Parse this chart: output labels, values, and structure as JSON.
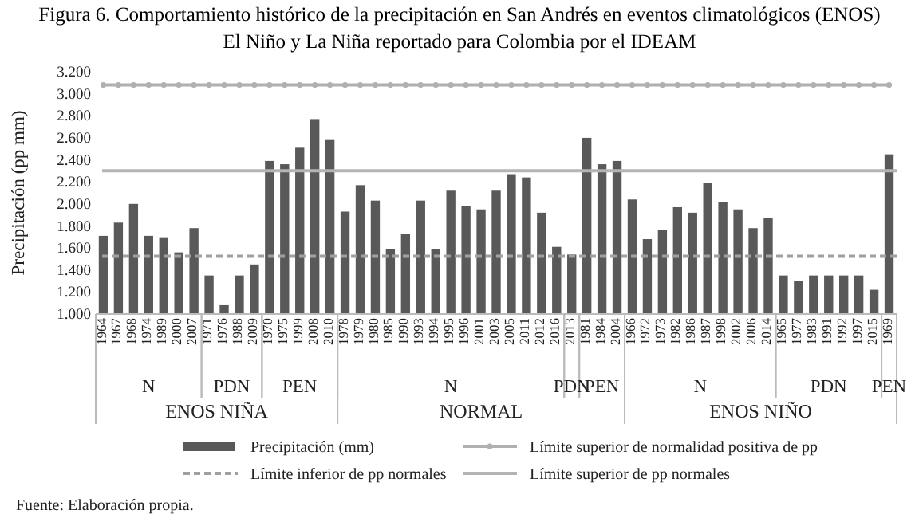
{
  "chart_data": {
    "type": "bar",
    "title": "Figura 6. Comportamiento histórico de la precipitación en San Andrés en eventos climatológicos (ENOS) El Niño y La Niña reportado para Colombia por el IDEAM",
    "ylabel": "Precipitación (pp mm)",
    "categories": [
      "1964",
      "1967",
      "1968",
      "1974",
      "1989",
      "2000",
      "2007",
      "1971",
      "1976",
      "1988",
      "2009",
      "1970",
      "1975",
      "1999",
      "2008",
      "2010",
      "1978",
      "1979",
      "1980",
      "1985",
      "1990",
      "1993",
      "1994",
      "1995",
      "1996",
      "2001",
      "2003",
      "2005",
      "2011",
      "2012",
      "2016",
      "2013",
      "1981",
      "1984",
      "2004",
      "1966",
      "1972",
      "1973",
      "1982",
      "1986",
      "1987",
      "1998",
      "2002",
      "2006",
      "2014",
      "1965",
      "1977",
      "1983",
      "1991",
      "1992",
      "1997",
      "2015",
      "1969"
    ],
    "series": [
      {
        "name": "Precipitación (mm)",
        "color": "#595959",
        "values": [
          1710,
          1830,
          2000,
          1710,
          1690,
          1560,
          1780,
          1350,
          1080,
          1350,
          1450,
          2390,
          2360,
          2510,
          2770,
          2580,
          1930,
          2170,
          2030,
          1590,
          1730,
          2030,
          1590,
          2120,
          1980,
          1950,
          2120,
          2270,
          2240,
          1920,
          1610,
          1540,
          2600,
          2360,
          2390,
          2040,
          1680,
          1760,
          1970,
          1920,
          2190,
          2020,
          1950,
          1780,
          1870,
          1350,
          1300,
          1350,
          1350,
          1350,
          1350,
          1220,
          2450
        ]
      },
      {
        "name": "Límite superior de normalidad positiva de pp",
        "type": "line",
        "color": "#b0b0b0",
        "marker": "circle",
        "values": [
          3080,
          3080,
          3080,
          3080,
          3080,
          3080,
          3080,
          3080,
          3080,
          3080,
          3080,
          3080,
          3080,
          3080,
          3080,
          3080,
          3080,
          3080,
          3080,
          3080,
          3080,
          3080,
          3080,
          3080,
          3080,
          3080,
          3080,
          3080,
          3080,
          3080,
          3080,
          3080,
          3080,
          3080,
          3080,
          3080,
          3080,
          3080,
          3080,
          3080,
          3080,
          3080,
          3080,
          3080,
          3080,
          3080,
          3080,
          3080,
          3080,
          3080,
          3080,
          3080,
          3080
        ]
      }
    ],
    "ref_lines": [
      {
        "axis": "y",
        "value": 1525,
        "label": "Límite inferior de pp normales",
        "color": "#a0a0a0",
        "line_style": "dashed"
      },
      {
        "axis": "y",
        "value": 2300,
        "label": "Límite superior de pp normales",
        "color": "#b4b4b4",
        "line_style": "solid"
      }
    ],
    "ylim": [
      1000,
      3200
    ],
    "yticks": [
      {
        "value": 1000,
        "label": "1.000"
      },
      {
        "value": 1200,
        "label": "1.200"
      },
      {
        "value": 1400,
        "label": "1.400"
      },
      {
        "value": 1600,
        "label": "1.600"
      },
      {
        "value": 1800,
        "label": "1.800"
      },
      {
        "value": 2000,
        "label": "2.000"
      },
      {
        "value": 2200,
        "label": "2.200"
      },
      {
        "value": 2400,
        "label": "2.400"
      },
      {
        "value": 2600,
        "label": "2.600"
      },
      {
        "value": 2800,
        "label": "2.800"
      },
      {
        "value": 3000,
        "label": "3.000"
      },
      {
        "value": 3200,
        "label": "3.200"
      }
    ],
    "grid": false,
    "legend": "bottom",
    "annotations": [
      "N",
      "PDN",
      "PEN",
      "N",
      "PDN",
      "PEN",
      "N",
      "PDN",
      "PEN",
      "ENOS NIÑA",
      "NORMAL",
      "ENOS NIÑO",
      "Fuente: Elaboración propia."
    ]
  }
}
